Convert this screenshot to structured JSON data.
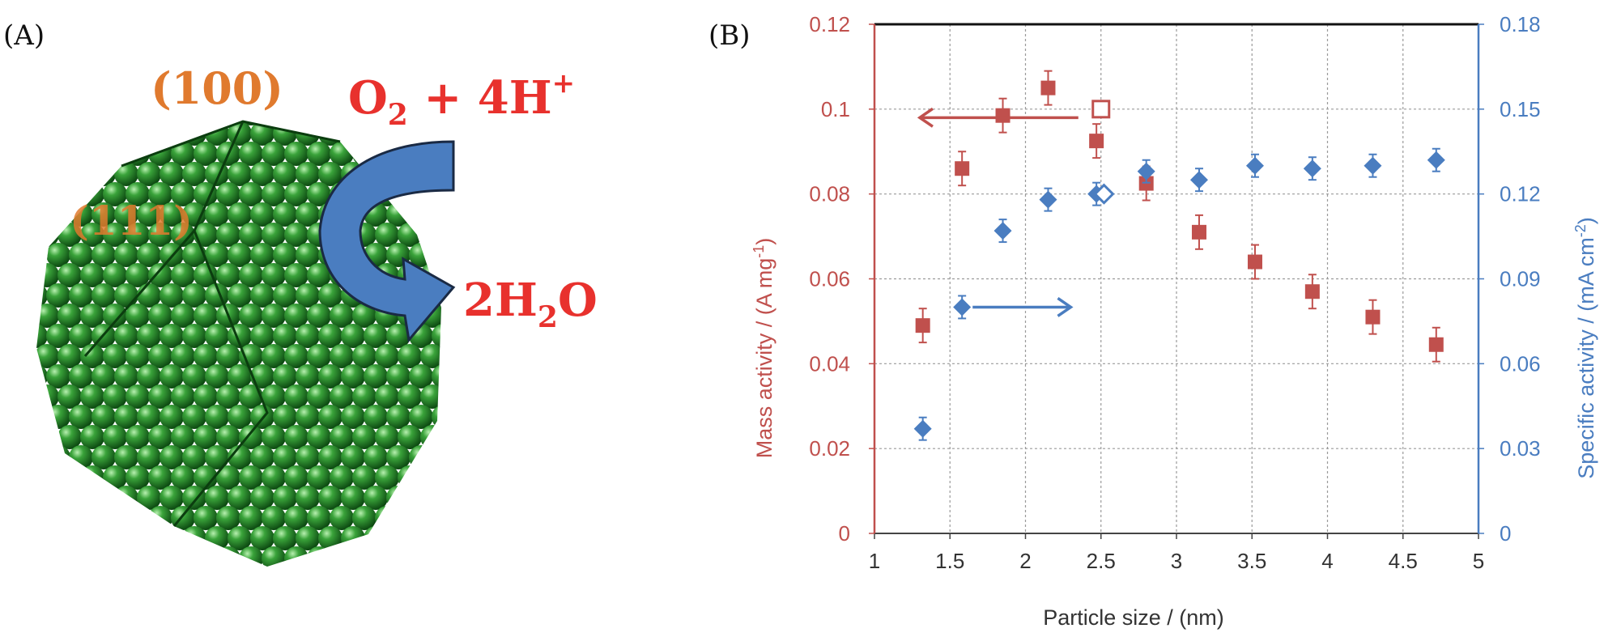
{
  "panel_a": {
    "label": "(A)",
    "facet_100": "(100)",
    "facet_111": "(111)",
    "reactant_o": "O",
    "reactant_o_sub": "2",
    "reactant_plus": " + 4H",
    "reactant_sup": "+",
    "product_coef": "2H",
    "product_sub": "2",
    "product_o": "O",
    "colors": {
      "sphere": "#2e8b2e",
      "facet_label": "#e07a2e",
      "equation": "#e8312d",
      "arrow": "#4a7dc0"
    }
  },
  "panel_b": {
    "label": "(B)"
  },
  "chart_data": {
    "type": "scatter",
    "xlabel": "Particle size / (nm)",
    "ylabel_left_main": "Mass activity / (A mg",
    "ylabel_left_sup": "-1",
    "ylabel_left_end": ")",
    "ylabel_right_main": "Specific activity / (mA cm",
    "ylabel_right_sup": "-2",
    "ylabel_right_end": ")",
    "xlim": [
      1,
      5
    ],
    "ylim_left": [
      0,
      0.12
    ],
    "ylim_right": [
      0,
      0.18
    ],
    "x_ticks": [
      "1",
      "1.5",
      "2",
      "2.5",
      "3",
      "3.5",
      "4",
      "4.5",
      "5"
    ],
    "x_tick_values": [
      1,
      1.5,
      2,
      2.5,
      3,
      3.5,
      4,
      4.5,
      5
    ],
    "y_left_ticks": [
      "0",
      "0.02",
      "0.04",
      "0.06",
      "0.08",
      "0.1",
      "0.12"
    ],
    "y_left_tick_values": [
      0,
      0.02,
      0.04,
      0.06,
      0.08,
      0.1,
      0.12
    ],
    "y_right_ticks": [
      "0",
      "0.03",
      "0.06",
      "0.09",
      "0.12",
      "0.15",
      "0.18"
    ],
    "y_right_tick_values": [
      0,
      0.03,
      0.06,
      0.09,
      0.12,
      0.15,
      0.18
    ],
    "grid": true,
    "colors": {
      "left": "#c0504d",
      "right": "#4a7dc0"
    },
    "series": [
      {
        "axis": "left",
        "marker": "square",
        "points": [
          {
            "x": 1.32,
            "y": 0.049,
            "err": 0.004
          },
          {
            "x": 1.58,
            "y": 0.086,
            "err": 0.004
          },
          {
            "x": 1.85,
            "y": 0.0985,
            "err": 0.004
          },
          {
            "x": 2.15,
            "y": 0.105,
            "err": 0.004
          },
          {
            "x": 2.47,
            "y": 0.0925,
            "err": 0.004
          },
          {
            "x": 2.8,
            "y": 0.0825,
            "err": 0.004
          },
          {
            "x": 3.15,
            "y": 0.071,
            "err": 0.004
          },
          {
            "x": 3.52,
            "y": 0.064,
            "err": 0.004
          },
          {
            "x": 3.9,
            "y": 0.057,
            "err": 0.004
          },
          {
            "x": 4.3,
            "y": 0.051,
            "err": 0.004
          },
          {
            "x": 4.72,
            "y": 0.0445,
            "err": 0.004
          }
        ]
      },
      {
        "axis": "right",
        "marker": "diamond",
        "points": [
          {
            "x": 1.32,
            "y": 0.037,
            "err": 0.004
          },
          {
            "x": 1.58,
            "y": 0.08,
            "err": 0.004
          },
          {
            "x": 1.85,
            "y": 0.107,
            "err": 0.004
          },
          {
            "x": 2.15,
            "y": 0.118,
            "err": 0.004
          },
          {
            "x": 2.47,
            "y": 0.12,
            "err": 0.004
          },
          {
            "x": 2.8,
            "y": 0.128,
            "err": 0.004
          },
          {
            "x": 3.15,
            "y": 0.125,
            "err": 0.004
          },
          {
            "x": 3.52,
            "y": 0.13,
            "err": 0.004
          },
          {
            "x": 3.9,
            "y": 0.129,
            "err": 0.004
          },
          {
            "x": 4.3,
            "y": 0.13,
            "err": 0.004
          },
          {
            "x": 4.72,
            "y": 0.132,
            "err": 0.004
          }
        ]
      },
      {
        "axis": "left",
        "marker": "open-square",
        "points": [
          {
            "x": 2.5,
            "y": 0.1
          }
        ]
      },
      {
        "axis": "right",
        "marker": "open-diamond",
        "points": [
          {
            "x": 2.52,
            "y": 0.12
          }
        ]
      }
    ],
    "annotations": [
      {
        "direction": "left",
        "axis": "left",
        "x_from": 2.35,
        "x_to": 1.3,
        "y": 0.098
      },
      {
        "direction": "right",
        "axis": "right",
        "x_from": 1.65,
        "x_to": 2.3,
        "y": 0.08
      }
    ]
  }
}
